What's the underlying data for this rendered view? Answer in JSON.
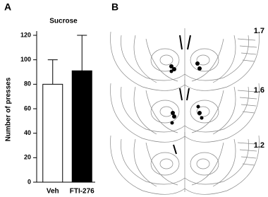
{
  "panels": [
    "A",
    "B"
  ],
  "sections": [
    "1.7",
    "1.6",
    "1.2"
  ],
  "chart_data": {
    "type": "bar",
    "title": "Sucrose",
    "y_label": "Number of presses",
    "categories": [
      "Veh",
      "FTI-276"
    ],
    "values": [
      80,
      91
    ],
    "errors": [
      20,
      29
    ],
    "colors": [
      "#ffffff",
      "#000000"
    ],
    "ylim": [
      0,
      120
    ],
    "yticks": [
      0,
      20,
      40,
      60,
      80,
      100,
      120
    ]
  }
}
